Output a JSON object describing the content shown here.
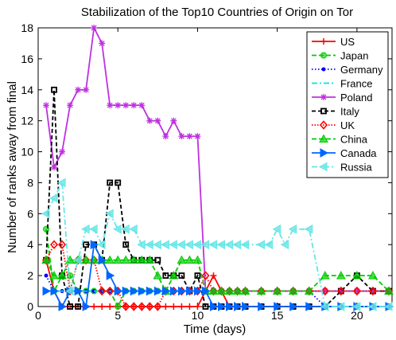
{
  "chart_data": {
    "type": "line",
    "title": "Stabilization of the Top10 Countries of Origin on Tor",
    "xlabel": "Time (days)",
    "ylabel": "Number of ranks away from final",
    "xlim": [
      0,
      22.2
    ],
    "ylim": [
      0,
      18
    ],
    "xticks": [
      0,
      5,
      10,
      15,
      20
    ],
    "yticks": [
      0,
      2,
      4,
      6,
      8,
      10,
      12,
      14,
      16,
      18
    ],
    "grid": false,
    "legend_position": "top-right",
    "series": [
      {
        "name": "US",
        "color": "#ff0000",
        "dash": "",
        "marker": "plus",
        "x": [
          0.5,
          1,
          1.5,
          2,
          2.5,
          3,
          3.5,
          4,
          4.5,
          5,
          5.5,
          6,
          6.5,
          7,
          7.5,
          8,
          8.5,
          9,
          9.5,
          10,
          10.5,
          11,
          11.5,
          12,
          12.5,
          13,
          14,
          15,
          16,
          17,
          18,
          19,
          20,
          21,
          22
        ],
        "y": [
          3,
          1,
          0,
          0,
          0,
          0,
          0,
          0,
          0,
          0,
          0,
          0,
          0,
          0,
          0,
          0,
          0,
          0,
          0,
          0,
          1,
          2,
          1,
          0,
          0,
          0,
          0,
          0,
          0,
          0,
          0,
          0,
          0,
          0,
          0
        ]
      },
      {
        "name": "Japan",
        "color": "#00cc00",
        "dash": "6,3",
        "marker": "circle",
        "x": [
          0.5,
          1,
          1.5,
          2,
          2.5,
          3,
          3.5,
          4,
          4.5,
          5,
          5.5,
          6,
          6.5,
          7,
          7.5,
          8,
          8.5,
          9,
          9.5,
          10,
          10.5,
          11,
          11.5,
          12,
          12.5,
          13,
          14,
          15,
          16,
          17,
          18,
          19,
          20,
          21,
          22
        ],
        "y": [
          5,
          1,
          2,
          2,
          1,
          1,
          1,
          1,
          1,
          0,
          1,
          1,
          1,
          1,
          1,
          1,
          1,
          1,
          1,
          1,
          1,
          1,
          1,
          1,
          1,
          1,
          1,
          1,
          1,
          1,
          1,
          1,
          1,
          1,
          1
        ]
      },
      {
        "name": "Germany",
        "color": "#0000ff",
        "dash": "1.5,2.5",
        "marker": "dot",
        "x": [
          0.5,
          1,
          1.5,
          2,
          2.5,
          3,
          3.5,
          4,
          4.5,
          5,
          5.5,
          6,
          6.5,
          7,
          7.5,
          8,
          8.5,
          9,
          9.5,
          10,
          10.5,
          11,
          11.5,
          12,
          12.5,
          13,
          14,
          15,
          16,
          17,
          18,
          19,
          20,
          21,
          22
        ],
        "y": [
          2,
          1,
          1,
          1,
          1,
          1,
          1,
          1,
          1,
          1,
          1,
          1,
          1,
          1,
          1,
          1,
          1,
          1,
          1,
          1,
          1,
          1,
          1,
          1,
          1,
          1,
          1,
          1,
          1,
          1,
          0,
          0,
          0,
          0,
          0
        ]
      },
      {
        "name": "France",
        "color": "#00e5e5",
        "dash": "7,3,2,3",
        "marker": "none",
        "x": [
          0.5,
          1,
          1.5,
          2,
          2.5,
          3,
          3.5,
          4,
          4.5,
          5,
          5.5,
          6,
          6.5,
          7,
          7.5,
          8,
          8.5,
          9,
          9.5,
          10,
          10.5,
          11,
          11.5,
          12,
          12.5,
          13,
          14,
          15,
          16,
          17,
          18,
          19,
          20,
          21,
          22
        ],
        "y": [
          1,
          1,
          1,
          1,
          1,
          1,
          1,
          1,
          1,
          1,
          1,
          1,
          1,
          1,
          1,
          1,
          1,
          1,
          1,
          1,
          1,
          1,
          1,
          1,
          1,
          1,
          1,
          1,
          1,
          1,
          1,
          1,
          1,
          1,
          1
        ]
      },
      {
        "name": "Poland",
        "color": "#c030e0",
        "dash": "",
        "marker": "star",
        "x": [
          0.5,
          1,
          1.5,
          2,
          2.5,
          3,
          3.5,
          4,
          4.5,
          5,
          5.5,
          6,
          6.5,
          7,
          7.5,
          8,
          8.5,
          9,
          9.5,
          10,
          10.5,
          11,
          11.5,
          12,
          12.5,
          13,
          14,
          15,
          16,
          17,
          18,
          19,
          20,
          21,
          22
        ],
        "y": [
          13,
          9,
          10,
          13,
          14,
          14,
          18,
          17,
          13,
          13,
          13,
          13,
          13,
          12,
          12,
          11,
          12,
          11,
          11,
          11,
          1,
          1,
          1,
          1,
          1,
          1,
          1,
          1,
          1,
          1,
          1,
          1,
          1,
          1,
          1
        ]
      },
      {
        "name": "Italy",
        "color": "#000000",
        "dash": "5,3",
        "marker": "square",
        "x": [
          0.5,
          1,
          1.5,
          2,
          2.5,
          3,
          3.5,
          4,
          4.5,
          5,
          5.5,
          6,
          6.5,
          7,
          7.5,
          8,
          8.5,
          9,
          9.5,
          10,
          10.5,
          11,
          11.5,
          12,
          12.5,
          13,
          14,
          15,
          16,
          17,
          18,
          19,
          20,
          21,
          22
        ],
        "y": [
          3,
          14,
          2,
          0,
          0,
          4,
          4,
          3,
          8,
          8,
          4,
          3,
          3,
          3,
          3,
          2,
          2,
          2,
          1,
          2,
          0,
          0,
          0,
          0,
          0,
          0,
          0,
          0,
          0,
          0,
          0,
          1,
          2,
          1,
          1
        ]
      },
      {
        "name": "UK",
        "color": "#ff0000",
        "dash": "1.5,2",
        "marker": "diamond",
        "x": [
          0.5,
          1,
          1.5,
          2,
          2.5,
          3,
          3.5,
          4,
          4.5,
          5,
          5.5,
          6,
          6.5,
          7,
          7.5,
          8,
          8.5,
          9,
          9.5,
          10,
          10.5,
          11,
          11.5,
          12,
          12.5,
          13,
          14,
          15,
          16,
          17,
          18,
          19,
          20,
          21,
          22
        ],
        "y": [
          3,
          4,
          4,
          1,
          3,
          3,
          3,
          1,
          1,
          1,
          0,
          0,
          0,
          0,
          0,
          1,
          1,
          1,
          1,
          1,
          2,
          1,
          1,
          1,
          1,
          1,
          1,
          1,
          1,
          1,
          1,
          1,
          1,
          1,
          1
        ]
      },
      {
        "name": "China",
        "color": "#00cc00",
        "dash": "6,3",
        "marker": "triangle-up",
        "x": [
          0.5,
          1,
          1.5,
          2,
          2.5,
          3,
          3.5,
          4,
          4.5,
          5,
          5.5,
          6,
          6.5,
          7,
          7.5,
          8,
          8.5,
          9,
          9.5,
          10,
          10.5,
          11,
          11.5,
          12,
          12.5,
          13,
          14,
          15,
          16,
          17,
          18,
          19,
          20,
          21,
          22
        ],
        "y": [
          3,
          2,
          2,
          3,
          3,
          3,
          3,
          3,
          3,
          3,
          3,
          3,
          3,
          3,
          2,
          1,
          2,
          3,
          3,
          3,
          1,
          1,
          1,
          1,
          1,
          1,
          1,
          1,
          1,
          1,
          2,
          2,
          2,
          2,
          1
        ]
      },
      {
        "name": "Canada",
        "color": "#0066ff",
        "dash": "",
        "marker": "triangle-right",
        "x": [
          0.5,
          1,
          1.5,
          2,
          2.5,
          3,
          3.5,
          4,
          4.5,
          5,
          5.5,
          6,
          6.5,
          7,
          7.5,
          8,
          8.5,
          9,
          9.5,
          10,
          10.5,
          11,
          11.5,
          12,
          12.5,
          13,
          14,
          15,
          16,
          17,
          18,
          19,
          20,
          21,
          22
        ],
        "y": [
          1,
          1,
          0,
          1,
          1,
          0,
          4,
          3,
          2,
          1,
          1,
          1,
          1,
          1,
          1,
          1,
          1,
          1,
          1,
          1,
          1,
          0,
          0,
          0,
          0,
          0,
          0,
          0,
          0,
          0,
          0,
          0,
          0,
          0,
          0
        ]
      },
      {
        "name": "Russia",
        "color": "#66e5e5",
        "dash": "7,3,2,3",
        "marker": "triangle-left",
        "x": [
          0.5,
          1,
          1.5,
          2,
          2.5,
          3,
          3.5,
          4,
          4.5,
          5,
          5.5,
          6,
          6.5,
          7,
          7.5,
          8,
          8.5,
          9,
          9.5,
          10,
          10.5,
          11,
          11.5,
          12,
          12.5,
          13,
          14,
          14.5,
          15,
          15.5,
          16,
          17,
          18,
          19,
          20,
          21,
          22
        ],
        "y": [
          6,
          7,
          8,
          1,
          3,
          5,
          5,
          4,
          6,
          5,
          5,
          5,
          4,
          4,
          4,
          4,
          4,
          4,
          4,
          4,
          4,
          4,
          4,
          4,
          4,
          4,
          4,
          4,
          5,
          4,
          5,
          5,
          0,
          0,
          0,
          0,
          0
        ]
      }
    ]
  }
}
